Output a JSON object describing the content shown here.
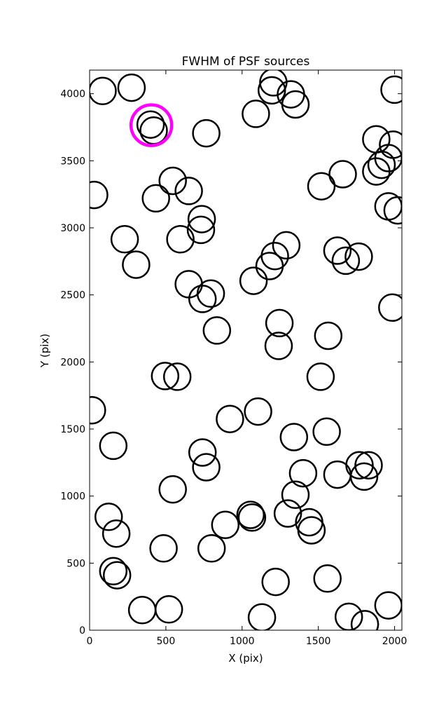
{
  "chart_data": {
    "type": "scatter",
    "title": "FWHM of PSF sources",
    "xlabel": "X (pix)",
    "ylabel": "Y (pix)",
    "xlim": [
      0,
      2048
    ],
    "ylim": [
      0,
      4176
    ],
    "xticks": [
      0,
      500,
      1000,
      1500,
      2000
    ],
    "yticks": [
      0,
      500,
      1000,
      1500,
      2000,
      2500,
      3000,
      3500,
      4000
    ],
    "grid": false,
    "marker": "open-circle",
    "marker_color": "#000000",
    "highlight_color": "#ff00ff",
    "points": [
      {
        "x": 85,
        "y": 4020
      },
      {
        "x": 275,
        "y": 4045
      },
      {
        "x": 400,
        "y": 3770
      },
      {
        "x": 420,
        "y": 3725
      },
      {
        "x": 765,
        "y": 3705
      },
      {
        "x": 30,
        "y": 3245
      },
      {
        "x": 545,
        "y": 3350
      },
      {
        "x": 435,
        "y": 3220
      },
      {
        "x": 650,
        "y": 3275
      },
      {
        "x": 735,
        "y": 3065
      },
      {
        "x": 730,
        "y": 2985
      },
      {
        "x": 230,
        "y": 2915
      },
      {
        "x": 595,
        "y": 2915
      },
      {
        "x": 305,
        "y": 2725
      },
      {
        "x": 650,
        "y": 2580
      },
      {
        "x": 740,
        "y": 2470
      },
      {
        "x": 795,
        "y": 2510
      },
      {
        "x": 835,
        "y": 2235
      },
      {
        "x": 1090,
        "y": 3850
      },
      {
        "x": 1205,
        "y": 4085
      },
      {
        "x": 1195,
        "y": 4025
      },
      {
        "x": 1320,
        "y": 3995
      },
      {
        "x": 1350,
        "y": 3920
      },
      {
        "x": 1520,
        "y": 3310
      },
      {
        "x": 1660,
        "y": 3400
      },
      {
        "x": 1880,
        "y": 3660
      },
      {
        "x": 1990,
        "y": 3620
      },
      {
        "x": 1960,
        "y": 3520
      },
      {
        "x": 1915,
        "y": 3470
      },
      {
        "x": 1880,
        "y": 3420
      },
      {
        "x": 1960,
        "y": 3160
      },
      {
        "x": 2020,
        "y": 3130
      },
      {
        "x": 2000,
        "y": 4030
      },
      {
        "x": 1290,
        "y": 2870
      },
      {
        "x": 1215,
        "y": 2790
      },
      {
        "x": 1180,
        "y": 2715
      },
      {
        "x": 1075,
        "y": 2605
      },
      {
        "x": 1625,
        "y": 2830
      },
      {
        "x": 1680,
        "y": 2755
      },
      {
        "x": 1765,
        "y": 2785
      },
      {
        "x": 1985,
        "y": 2405
      },
      {
        "x": 1245,
        "y": 2290
      },
      {
        "x": 1240,
        "y": 2120
      },
      {
        "x": 1565,
        "y": 2195
      },
      {
        "x": 1515,
        "y": 1890
      },
      {
        "x": 495,
        "y": 1895
      },
      {
        "x": 575,
        "y": 1890
      },
      {
        "x": 15,
        "y": 1640
      },
      {
        "x": 155,
        "y": 1375
      },
      {
        "x": 920,
        "y": 1575
      },
      {
        "x": 1105,
        "y": 1630
      },
      {
        "x": 1340,
        "y": 1440
      },
      {
        "x": 1555,
        "y": 1480
      },
      {
        "x": 740,
        "y": 1325
      },
      {
        "x": 765,
        "y": 1215
      },
      {
        "x": 545,
        "y": 1050
      },
      {
        "x": 1400,
        "y": 1170
      },
      {
        "x": 1625,
        "y": 1160
      },
      {
        "x": 1770,
        "y": 1230
      },
      {
        "x": 1830,
        "y": 1230
      },
      {
        "x": 1800,
        "y": 1145
      },
      {
        "x": 1350,
        "y": 1010
      },
      {
        "x": 125,
        "y": 845
      },
      {
        "x": 175,
        "y": 720
      },
      {
        "x": 890,
        "y": 785
      },
      {
        "x": 1055,
        "y": 860
      },
      {
        "x": 1065,
        "y": 840
      },
      {
        "x": 1300,
        "y": 870
      },
      {
        "x": 1440,
        "y": 805
      },
      {
        "x": 1455,
        "y": 745
      },
      {
        "x": 485,
        "y": 610
      },
      {
        "x": 800,
        "y": 610
      },
      {
        "x": 155,
        "y": 440
      },
      {
        "x": 180,
        "y": 410
      },
      {
        "x": 1220,
        "y": 360
      },
      {
        "x": 1560,
        "y": 385
      },
      {
        "x": 345,
        "y": 150
      },
      {
        "x": 520,
        "y": 155
      },
      {
        "x": 1130,
        "y": 95
      },
      {
        "x": 1700,
        "y": 100
      },
      {
        "x": 1805,
        "y": 45
      },
      {
        "x": 1960,
        "y": 185
      }
    ],
    "highlighted": [
      {
        "x": 405,
        "y": 3765
      }
    ]
  }
}
